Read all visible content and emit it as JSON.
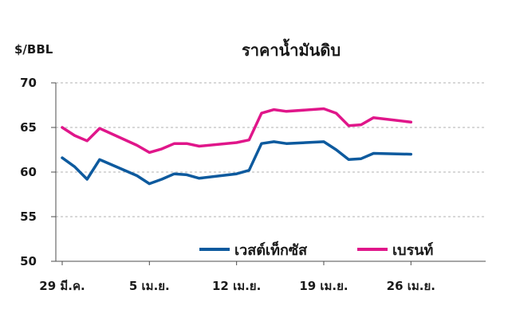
{
  "chart_data": {
    "type": "line",
    "title": "ราคาน้ำมันดิบ",
    "ylabel": "$/BBL",
    "xlabel": "",
    "ylim": [
      50,
      70
    ],
    "yticks": [
      50,
      55,
      60,
      65,
      70
    ],
    "grid": true,
    "legend_position": "bottom-right",
    "x_tick_labels": [
      {
        "x": 0,
        "label": "29 มี.ค."
      },
      {
        "x": 7,
        "label": "5 เม.ย."
      },
      {
        "x": 14,
        "label": "12 เม.ย."
      },
      {
        "x": 21,
        "label": "19 เม.ย."
      },
      {
        "x": 28,
        "label": "26 เม.ย."
      }
    ],
    "xlim": [
      0,
      34
    ],
    "series": [
      {
        "name": "เวสต์เท็กซัส",
        "color": "#0d5a9e",
        "points": [
          {
            "x": 0,
            "y": 61.6
          },
          {
            "x": 1,
            "y": 60.6
          },
          {
            "x": 2,
            "y": 59.2
          },
          {
            "x": 3,
            "y": 61.4
          },
          {
            "x": 6,
            "y": 59.6
          },
          {
            "x": 7,
            "y": 58.7
          },
          {
            "x": 8,
            "y": 59.2
          },
          {
            "x": 9,
            "y": 59.8
          },
          {
            "x": 10,
            "y": 59.7
          },
          {
            "x": 11,
            "y": 59.3
          },
          {
            "x": 14,
            "y": 59.8
          },
          {
            "x": 15,
            "y": 60.2
          },
          {
            "x": 16,
            "y": 63.2
          },
          {
            "x": 17,
            "y": 63.4
          },
          {
            "x": 18,
            "y": 63.2
          },
          {
            "x": 21,
            "y": 63.4
          },
          {
            "x": 22,
            "y": 62.5
          },
          {
            "x": 23,
            "y": 61.4
          },
          {
            "x": 24,
            "y": 61.5
          },
          {
            "x": 25,
            "y": 62.1
          },
          {
            "x": 28,
            "y": 62.0
          }
        ]
      },
      {
        "name": "เบรนท์",
        "color": "#e0168a",
        "points": [
          {
            "x": 0,
            "y": 65.0
          },
          {
            "x": 1,
            "y": 64.1
          },
          {
            "x": 2,
            "y": 63.5
          },
          {
            "x": 3,
            "y": 64.9
          },
          {
            "x": 6,
            "y": 63.0
          },
          {
            "x": 7,
            "y": 62.2
          },
          {
            "x": 8,
            "y": 62.6
          },
          {
            "x": 9,
            "y": 63.2
          },
          {
            "x": 10,
            "y": 63.2
          },
          {
            "x": 11,
            "y": 62.9
          },
          {
            "x": 14,
            "y": 63.3
          },
          {
            "x": 15,
            "y": 63.6
          },
          {
            "x": 16,
            "y": 66.6
          },
          {
            "x": 17,
            "y": 67.0
          },
          {
            "x": 18,
            "y": 66.8
          },
          {
            "x": 21,
            "y": 67.1
          },
          {
            "x": 22,
            "y": 66.6
          },
          {
            "x": 23,
            "y": 65.2
          },
          {
            "x": 24,
            "y": 65.3
          },
          {
            "x": 25,
            "y": 66.1
          },
          {
            "x": 28,
            "y": 65.6
          }
        ]
      }
    ]
  }
}
